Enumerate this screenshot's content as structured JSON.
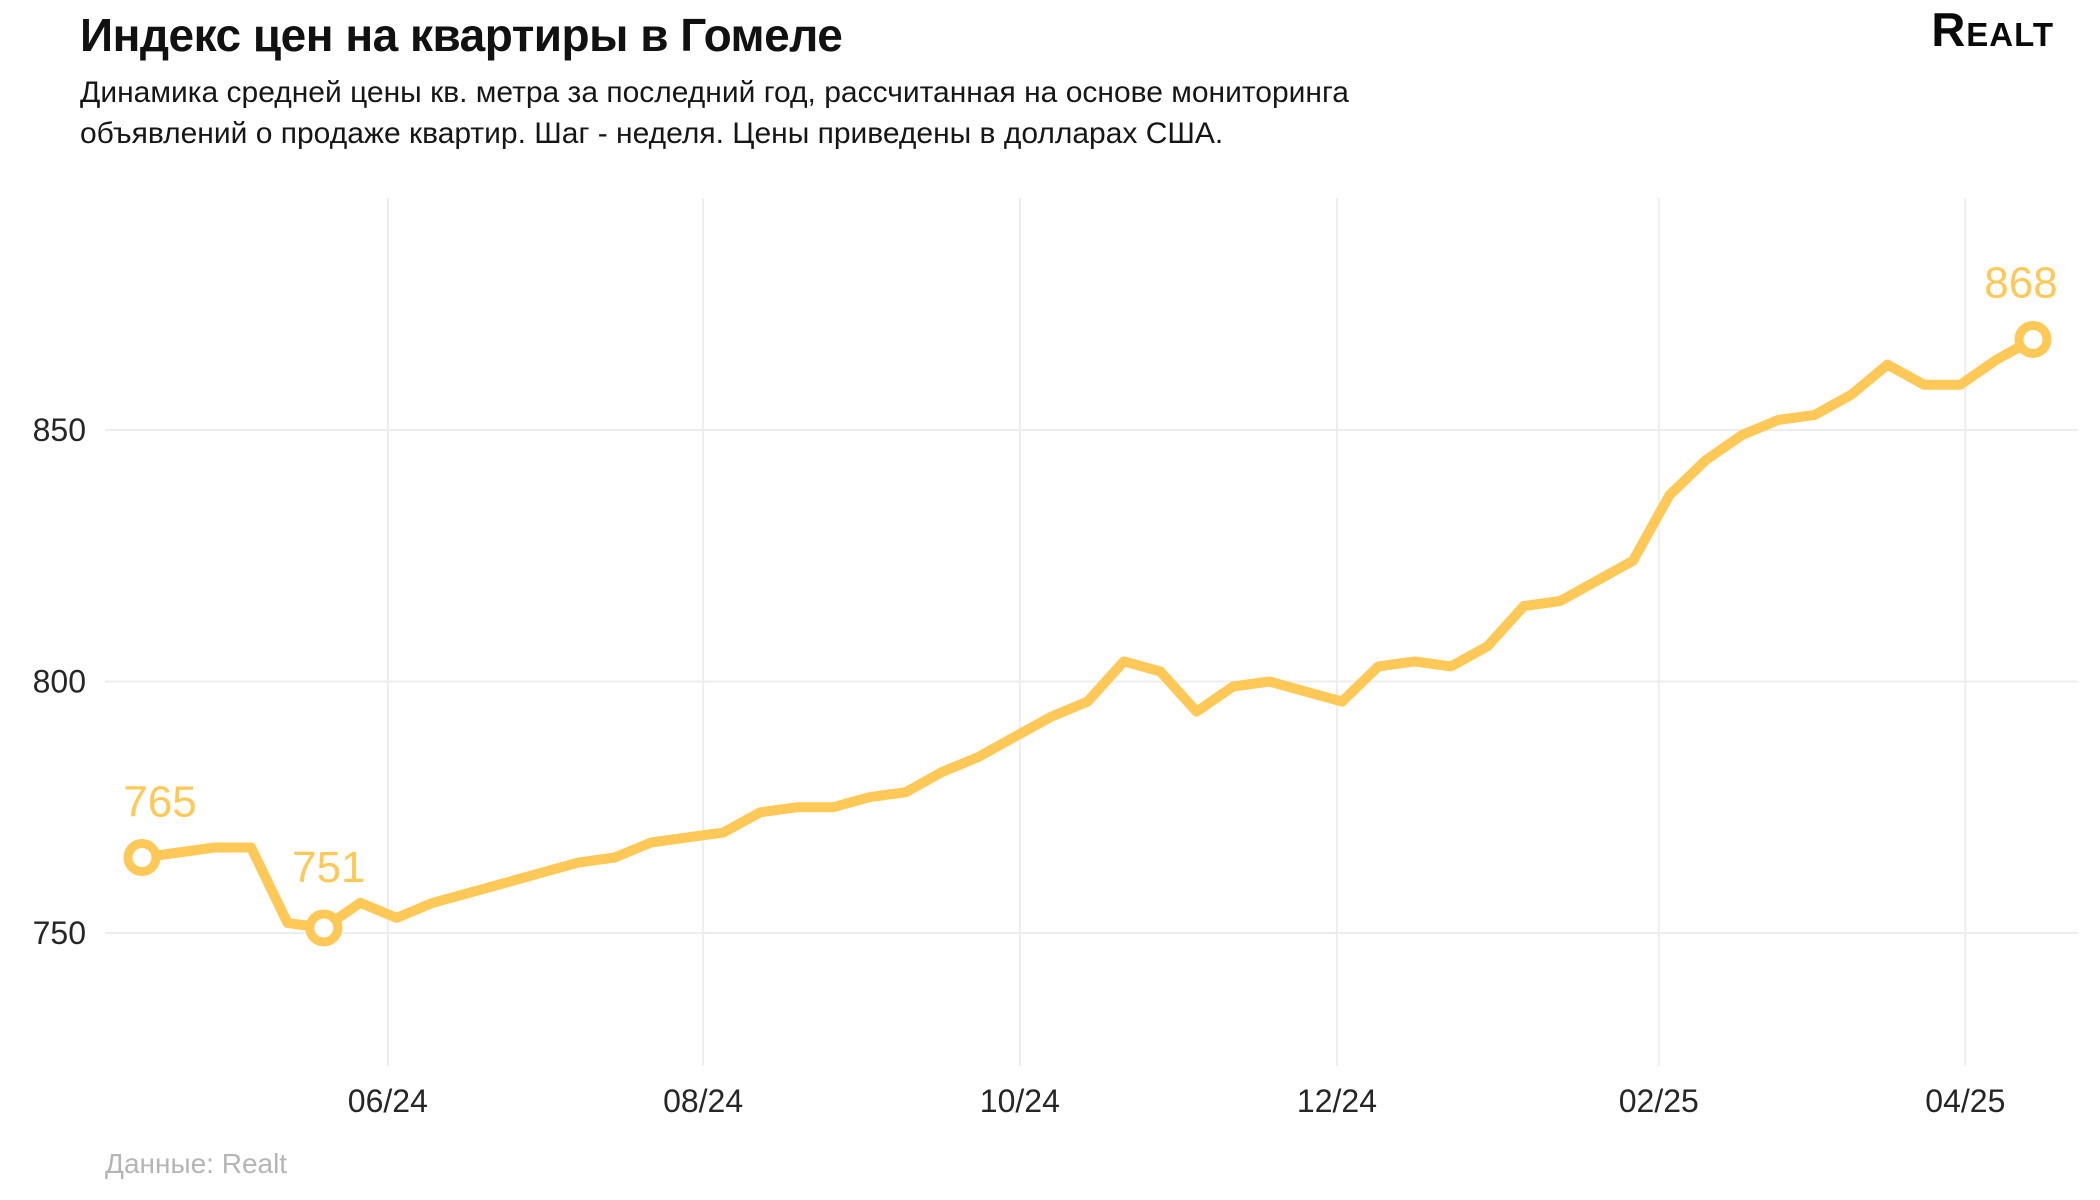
{
  "header": {
    "title": "Индекс цен на квартиры в Гомеле",
    "subtitle_line1": "Динамика средней цены кв. метра за последний год, рассчитанная на основе мониторинга",
    "subtitle_line2": "объявлений о продаже квартир. Шаг - неделя. Цены приведены в долларах США.",
    "logo": "Realt"
  },
  "source": "Данные: Realt",
  "colors": {
    "accent": "#ffc857",
    "text": "#161616",
    "tick": "#262626",
    "muted": "#b5b5b5",
    "grid": "#ededed"
  },
  "chart_data": {
    "type": "line",
    "title": "Индекс цен на квартиры в Гомеле",
    "xlabel": "",
    "ylabel": "",
    "step": "week",
    "values": [
      765,
      766,
      767,
      767,
      752,
      751,
      756,
      753,
      756,
      758,
      760,
      762,
      764,
      765,
      768,
      769,
      770,
      774,
      775,
      775,
      777,
      778,
      782,
      785,
      789,
      793,
      796,
      804,
      802,
      794,
      799,
      800,
      798,
      796,
      803,
      804,
      803,
      807,
      815,
      816,
      820,
      824,
      837,
      844,
      849,
      852,
      853,
      857,
      863,
      859,
      859,
      864,
      868
    ],
    "y_ticks": [
      750,
      800,
      850
    ],
    "y_tick_labels": [
      "750",
      "800",
      "850"
    ],
    "x_tick_labels": [
      "06/24",
      "08/24",
      "10/24",
      "12/24",
      "02/25",
      "04/25"
    ],
    "x_tick_weeks": [
      6.76,
      15.43,
      24.14,
      32.86,
      41.71,
      50.14
    ],
    "ylim": [
      723,
      896
    ],
    "grid": true,
    "legend": false,
    "annotations": [
      {
        "index": 0,
        "label": "765"
      },
      {
        "index": 5,
        "label": "751"
      },
      {
        "index": 52,
        "label": "868"
      }
    ]
  }
}
